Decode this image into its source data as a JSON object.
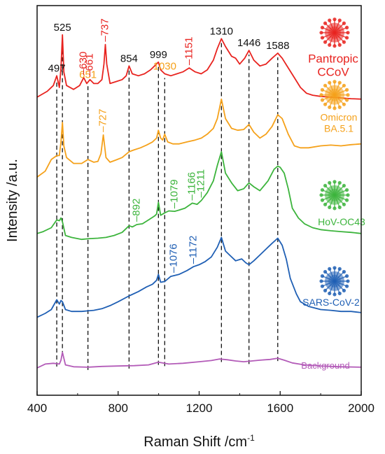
{
  "chart_data": {
    "type": "line",
    "title": "",
    "xlabel": "Raman Shift /cm",
    "xlabel_superscript": "-1",
    "ylabel": "Intensity /a.u.",
    "xlim": [
      400,
      2000
    ],
    "ylim": [
      0,
      100
    ],
    "x_ticks": [
      "400",
      "800",
      "1200",
      "1600",
      "2000"
    ],
    "y_ticks_shown": false,
    "grid": false,
    "colors": {
      "Pantropic CCoV": "#e8231f",
      "Omicron BA.5.1": "#f5a11a",
      "HoV-OC43": "#3cb43c",
      "SARS-CoV-2": "#1f5fb4",
      "Background": "#b35bb8"
    },
    "series": [
      {
        "name": "Pantropic CCoV",
        "label_lines": [
          "Pantropic",
          "CCoV"
        ],
        "icon": "virus-icon",
        "color": "#e8231f",
        "x": [
          400,
          450,
          480,
          497,
          510,
          518,
          525,
          532,
          545,
          580,
          610,
          630,
          645,
          661,
          680,
          700,
          720,
          730,
          737,
          744,
          760,
          790,
          820,
          840,
          854,
          870,
          900,
          930,
          960,
          980,
          999,
          1010,
          1030,
          1060,
          1090,
          1120,
          1151,
          1180,
          1210,
          1240,
          1270,
          1290,
          1310,
          1330,
          1360,
          1380,
          1400,
          1425,
          1446,
          1470,
          1500,
          1530,
          1560,
          1588,
          1610,
          1640,
          1670,
          1700,
          1730,
          1760,
          1800,
          1850,
          1900,
          1950,
          2000
        ],
        "y": [
          76.5,
          78,
          79.5,
          82,
          79,
          84,
          92.5,
          83,
          79.5,
          78.5,
          79.5,
          81.5,
          80,
          81,
          80,
          80,
          81,
          85,
          90,
          85,
          80,
          80.5,
          81,
          82,
          84.5,
          82.5,
          82,
          82.5,
          83.5,
          84.5,
          85.5,
          83.5,
          82.5,
          82,
          82.5,
          83,
          84,
          83,
          82.5,
          83.5,
          86,
          89,
          91.5,
          89.5,
          87,
          86.5,
          85,
          86.5,
          88.5,
          86,
          84.5,
          85,
          86.5,
          87.8,
          86.5,
          84,
          81.5,
          79,
          77.5,
          77,
          76.7,
          76.5,
          76.3,
          76.1,
          76
        ]
      },
      {
        "name": "Omicron BA.5.1",
        "label_lines": [
          "Omicron",
          "BA.5.1"
        ],
        "icon": "virus-icon",
        "color": "#f5a11a",
        "x": [
          400,
          440,
          470,
          497,
          510,
          518,
          525,
          532,
          545,
          580,
          620,
          651,
          680,
          700,
          715,
          727,
          740,
          760,
          790,
          820,
          854,
          880,
          910,
          940,
          970,
          990,
          999,
          1010,
          1020,
          1030,
          1045,
          1070,
          1100,
          1140,
          1180,
          1211,
          1240,
          1270,
          1290,
          1310,
          1330,
          1360,
          1390,
          1420,
          1446,
          1470,
          1500,
          1530,
          1560,
          1588,
          1610,
          1640,
          1670,
          1700,
          1740,
          1800,
          1850,
          1900,
          1950,
          2000
        ],
        "y": [
          56,
          57.5,
          60.5,
          61.5,
          61.5,
          65,
          70,
          64,
          61,
          59.5,
          59.5,
          60.5,
          59.8,
          60,
          62,
          66.8,
          61,
          59.8,
          60.4,
          61,
          62.5,
          63,
          63.5,
          64.2,
          65,
          66,
          68,
          66,
          65.5,
          67,
          65,
          64.5,
          64.5,
          65,
          65.5,
          66,
          67,
          68.5,
          71,
          76,
          71,
          68.5,
          68,
          68.2,
          69.5,
          67.5,
          66,
          67,
          69,
          72,
          71,
          67,
          64,
          63.5,
          63.5,
          64,
          64.2,
          64,
          64.3,
          64.5
        ]
      },
      {
        "name": "HoV-OC43",
        "label_lines": [
          "HoV-OC43"
        ],
        "icon": "virus-icon",
        "color": "#3cb43c",
        "x": [
          400,
          430,
          470,
          497,
          510,
          518,
          525,
          540,
          570,
          620,
          660,
          700,
          740,
          780,
          820,
          854,
          870,
          892,
          920,
          950,
          980,
          990,
          999,
          1010,
          1030,
          1050,
          1079,
          1100,
          1130,
          1166,
          1190,
          1211,
          1240,
          1270,
          1290,
          1310,
          1330,
          1360,
          1390,
          1420,
          1446,
          1470,
          1500,
          1540,
          1570,
          1588,
          1600,
          1620,
          1640,
          1660,
          1690,
          1720,
          1760,
          1800,
          1850,
          1900,
          1950,
          2000
        ],
        "y": [
          41.5,
          42,
          43,
          45,
          44.8,
          45.5,
          44.5,
          41,
          40.5,
          40,
          40.2,
          40.3,
          40.5,
          41,
          41.8,
          43.5,
          43.2,
          43.8,
          44,
          45,
          46,
          46.5,
          49.5,
          46.2,
          46.8,
          47.3,
          47.2,
          47.5,
          48,
          49.3,
          49,
          50,
          52,
          55,
          59,
          62.5,
          57,
          54.5,
          52.5,
          53,
          54.5,
          53.5,
          52.5,
          55,
          58,
          58.8,
          58.5,
          57,
          53,
          48,
          45.5,
          44,
          43,
          42.5,
          42.2,
          42,
          41.8,
          41.5
        ]
      },
      {
        "name": "SARS-CoV-2",
        "label_lines": [
          "SARS-CoV-2"
        ],
        "icon": "virus-icon",
        "color": "#1f5fb4",
        "x": [
          400,
          440,
          470,
          497,
          510,
          518,
          525,
          540,
          570,
          620,
          680,
          720,
          760,
          800,
          854,
          900,
          940,
          970,
          990,
          999,
          1010,
          1030,
          1060,
          1076,
          1100,
          1140,
          1172,
          1200,
          1230,
          1260,
          1290,
          1310,
          1330,
          1350,
          1380,
          1410,
          1430,
          1446,
          1470,
          1500,
          1530,
          1560,
          1588,
          1610,
          1630,
          1650,
          1680,
          1700,
          1740,
          1800,
          1850,
          1900,
          1950,
          2000
        ],
        "y": [
          20,
          21,
          22,
          24.5,
          23.4,
          24.3,
          24,
          22,
          21.5,
          21.5,
          21.8,
          22.2,
          23,
          24,
          25.5,
          26.6,
          27.8,
          28.5,
          29.5,
          31,
          29,
          29.2,
          30.5,
          30.7,
          31,
          32,
          33,
          33.5,
          34.3,
          35.5,
          38,
          40.5,
          37,
          36,
          34.5,
          35,
          34,
          33.5,
          34.5,
          36,
          37.5,
          39,
          40.3,
          38.5,
          35,
          30,
          26,
          24,
          22.8,
          22,
          21.8,
          21.5,
          21.5,
          21.2
        ]
      },
      {
        "name": "Background",
        "label_lines": [
          "Background"
        ],
        "icon": "",
        "color": "#b35bb8",
        "x": [
          400,
          440,
          480,
          510,
          518,
          525,
          540,
          580,
          650,
          720,
          800,
          880,
          950,
          999,
          1050,
          1120,
          1200,
          1260,
          1300,
          1340,
          1380,
          1420,
          1460,
          1500,
          1550,
          1588,
          1620,
          1660,
          1720,
          1800,
          1900,
          2000
        ],
        "y": [
          7,
          8,
          8.2,
          8,
          9,
          11,
          7.8,
          7.3,
          7.2,
          7.4,
          7.5,
          7.6,
          7.8,
          8.5,
          8,
          8.2,
          8.6,
          8.9,
          9.3,
          9.1,
          8.8,
          8.6,
          8.8,
          9,
          9.2,
          9.5,
          9,
          8.3,
          7.8,
          7.5,
          7.3,
          7.2
        ]
      }
    ],
    "guide_lines": [
      {
        "x": 497,
        "label": "497",
        "label_color": "#111111"
      },
      {
        "x": 525,
        "label": "525",
        "label_color": "#111111"
      },
      {
        "x": 651,
        "label": "651",
        "label_color": "#f5a11a"
      },
      {
        "x": 854,
        "label": "854",
        "label_color": "#111111"
      },
      {
        "x": 999,
        "label": "999",
        "label_color": "#111111"
      },
      {
        "x": 1030,
        "label": "1030",
        "label_color": "#f5a11a"
      },
      {
        "x": 1310,
        "label": "1310",
        "label_color": "#111111"
      },
      {
        "x": 1446,
        "label": "1446",
        "label_color": "#111111"
      },
      {
        "x": 1588,
        "label": "1588",
        "label_color": "#111111"
      }
    ],
    "peak_labels": [
      {
        "text": "630",
        "x": 630,
        "series": "Pantropic CCoV",
        "color": "#e8231f",
        "rotated": true
      },
      {
        "text": "661",
        "x": 661,
        "series": "Pantropic CCoV",
        "color": "#e8231f",
        "rotated": true
      },
      {
        "text": "737",
        "x": 737,
        "series": "Pantropic CCoV",
        "color": "#e8231f",
        "rotated": true
      },
      {
        "text": "1151",
        "x": 1151,
        "series": "Pantropic CCoV",
        "color": "#e8231f",
        "rotated": true
      },
      {
        "text": "727",
        "x": 727,
        "series": "Omicron BA.5.1",
        "color": "#f5a11a",
        "rotated": true
      },
      {
        "text": "892",
        "x": 892,
        "series": "HoV-OC43",
        "color": "#3cb43c",
        "rotated": true
      },
      {
        "text": "1079",
        "x": 1079,
        "series": "HoV-OC43",
        "color": "#3cb43c",
        "rotated": true
      },
      {
        "text": "1166",
        "x": 1166,
        "series": "HoV-OC43",
        "color": "#3cb43c",
        "rotated": true
      },
      {
        "text": "1211",
        "x": 1211,
        "series": "HoV-OC43",
        "color": "#3cb43c",
        "rotated": true
      },
      {
        "text": "1076",
        "x": 1076,
        "series": "SARS-CoV-2",
        "color": "#1f5fb4",
        "rotated": true
      },
      {
        "text": "1172",
        "x": 1172,
        "series": "SARS-CoV-2",
        "color": "#1f5fb4",
        "rotated": true
      }
    ]
  }
}
